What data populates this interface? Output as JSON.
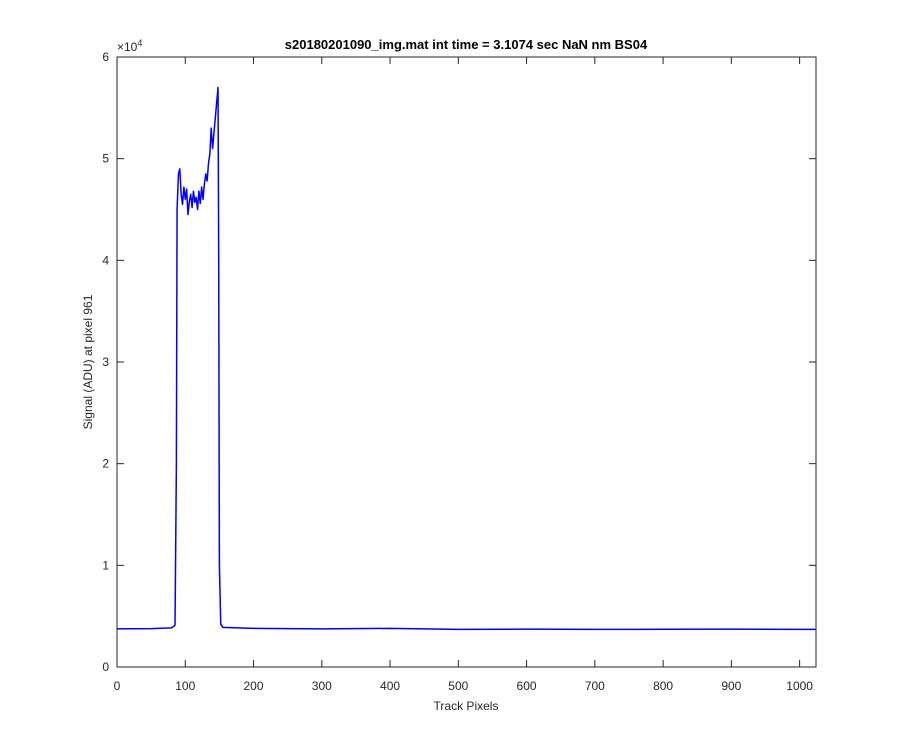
{
  "chart_data": {
    "type": "line",
    "title": "s20180201090_img.mat int time = 3.1074 sec  NaN nm BS04",
    "x_label": "Track Pixels",
    "y_label": "Signal (ADU) at pixel 961",
    "y_multiplier": {
      "base": "×10",
      "exponent": "4"
    },
    "color": "#0000ff",
    "x": [
      0,
      50,
      80,
      85,
      87,
      88,
      90,
      92,
      94,
      96,
      98,
      100,
      102,
      104,
      106,
      108,
      110,
      112,
      114,
      116,
      118,
      120,
      122,
      124,
      126,
      128,
      130,
      132,
      134,
      136,
      138,
      140,
      142,
      144,
      146,
      148,
      149,
      150,
      152,
      155,
      200,
      300,
      400,
      450,
      500,
      600,
      700,
      800,
      900,
      1000,
      1024
    ],
    "values": [
      3750,
      3780,
      3850,
      4100,
      20000,
      45000,
      48500,
      49000,
      46500,
      45500,
      47200,
      46000,
      47000,
      44500,
      45800,
      46500,
      45200,
      46800,
      45700,
      46200,
      45000,
      46800,
      45600,
      47200,
      46000,
      47500,
      48500,
      47800,
      49500,
      50500,
      53000,
      51000,
      52500,
      54000,
      55500,
      57000,
      40000,
      10000,
      4200,
      3900,
      3800,
      3750,
      3800,
      3750,
      3700,
      3720,
      3700,
      3710,
      3720,
      3700,
      3700
    ],
    "xlim": [
      0,
      1024
    ],
    "xticks": [
      0,
      100,
      200,
      300,
      400,
      500,
      600,
      700,
      800,
      900,
      1000
    ],
    "ylim": [
      0,
      60000
    ],
    "yticks": [
      {
        "value": 0,
        "label": "0"
      },
      {
        "value": 10000,
        "label": "1"
      },
      {
        "value": 20000,
        "label": "2"
      },
      {
        "value": 30000,
        "label": "3"
      },
      {
        "value": 40000,
        "label": "4"
      },
      {
        "value": 50000,
        "label": "5"
      },
      {
        "value": 60000,
        "label": "6"
      }
    ]
  }
}
